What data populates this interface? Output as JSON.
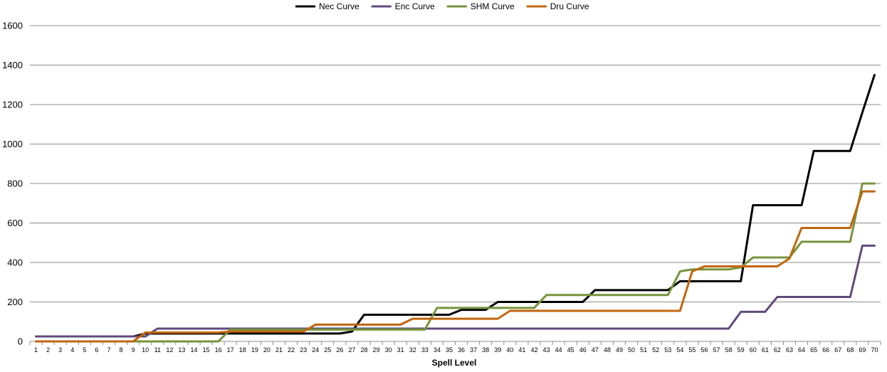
{
  "chart_data": {
    "type": "line",
    "title": "",
    "xlabel": "Spell Level",
    "ylabel": "",
    "ylim": [
      0,
      1600
    ],
    "yticks": [
      0,
      200,
      400,
      600,
      800,
      1000,
      1200,
      1400,
      1600
    ],
    "grid": true,
    "legend_position": "top",
    "x": [
      1,
      2,
      3,
      4,
      5,
      6,
      7,
      8,
      9,
      10,
      11,
      12,
      13,
      14,
      15,
      16,
      17,
      18,
      19,
      20,
      21,
      22,
      23,
      24,
      25,
      26,
      27,
      28,
      29,
      30,
      31,
      32,
      33,
      34,
      35,
      36,
      37,
      38,
      39,
      40,
      41,
      42,
      43,
      44,
      45,
      46,
      47,
      48,
      49,
      50,
      51,
      52,
      53,
      54,
      55,
      56,
      57,
      58,
      59,
      60,
      61,
      62,
      63,
      64,
      65,
      66,
      67,
      68,
      69,
      70
    ],
    "series": [
      {
        "name": "Nec Curve",
        "color": "#000000",
        "values": [
          25,
          25,
          25,
          25,
          25,
          25,
          25,
          25,
          25,
          40,
          40,
          40,
          40,
          40,
          40,
          40,
          40,
          40,
          40,
          40,
          40,
          40,
          40,
          40,
          40,
          40,
          50,
          135,
          135,
          135,
          135,
          135,
          135,
          135,
          135,
          160,
          160,
          160,
          200,
          200,
          200,
          200,
          200,
          200,
          200,
          200,
          260,
          260,
          260,
          260,
          260,
          260,
          260,
          305,
          305,
          305,
          305,
          305,
          305,
          690,
          690,
          690,
          690,
          690,
          965,
          965,
          965,
          965,
          1160,
          1350
        ]
      },
      {
        "name": "Enc Curve",
        "color": "#604a7b",
        "values": [
          25,
          25,
          25,
          25,
          25,
          25,
          25,
          25,
          25,
          25,
          65,
          65,
          65,
          65,
          65,
          65,
          65,
          65,
          65,
          65,
          65,
          65,
          65,
          65,
          65,
          65,
          65,
          65,
          65,
          65,
          65,
          65,
          65,
          65,
          65,
          65,
          65,
          65,
          65,
          65,
          65,
          65,
          65,
          65,
          65,
          65,
          65,
          65,
          65,
          65,
          65,
          65,
          65,
          65,
          65,
          65,
          65,
          65,
          150,
          150,
          150,
          225,
          225,
          225,
          225,
          225,
          225,
          225,
          485,
          485
        ]
      },
      {
        "name": "SHM Curve",
        "color": "#77933c",
        "values": [
          0,
          0,
          0,
          0,
          0,
          0,
          0,
          0,
          0,
          0,
          0,
          0,
          0,
          0,
          0,
          0,
          60,
          60,
          60,
          60,
          60,
          60,
          60,
          60,
          60,
          60,
          60,
          60,
          60,
          60,
          60,
          60,
          60,
          170,
          170,
          170,
          170,
          170,
          170,
          170,
          170,
          170,
          235,
          235,
          235,
          235,
          235,
          235,
          235,
          235,
          235,
          235,
          235,
          355,
          365,
          365,
          365,
          365,
          375,
          425,
          425,
          425,
          425,
          505,
          505,
          505,
          505,
          505,
          800,
          800
        ]
      },
      {
        "name": "Dru Curve",
        "color": "#c0660e",
        "values": [
          0,
          0,
          0,
          0,
          0,
          0,
          0,
          0,
          0,
          45,
          45,
          45,
          45,
          45,
          45,
          45,
          50,
          50,
          50,
          50,
          50,
          50,
          50,
          85,
          85,
          85,
          85,
          85,
          85,
          85,
          85,
          115,
          115,
          115,
          115,
          115,
          115,
          115,
          115,
          155,
          155,
          155,
          155,
          155,
          155,
          155,
          155,
          155,
          155,
          155,
          155,
          155,
          155,
          155,
          355,
          380,
          380,
          380,
          380,
          380,
          380,
          380,
          420,
          575,
          575,
          575,
          575,
          575,
          760,
          760
        ]
      }
    ]
  }
}
